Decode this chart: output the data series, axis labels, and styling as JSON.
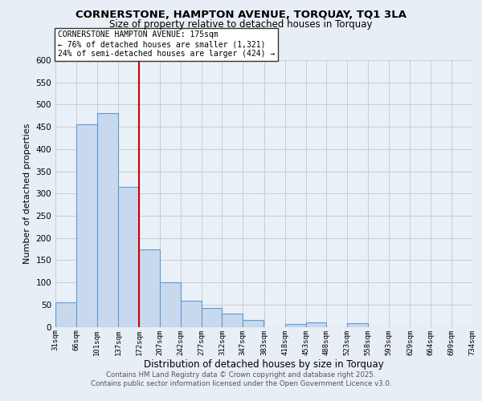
{
  "title": "CORNERSTONE, HAMPTON AVENUE, TORQUAY, TQ1 3LA",
  "subtitle": "Size of property relative to detached houses in Torquay",
  "xlabel": "Distribution of detached houses by size in Torquay",
  "ylabel": "Number of detached properties",
  "bar_left_edges": [
    31,
    66,
    101,
    137,
    172,
    207,
    242,
    277,
    312,
    347,
    383,
    418,
    453,
    488,
    523,
    558,
    593,
    629,
    664,
    699
  ],
  "bar_heights": [
    55,
    455,
    480,
    315,
    175,
    100,
    58,
    42,
    30,
    15,
    0,
    6,
    10,
    0,
    8,
    0,
    0,
    0,
    0,
    0
  ],
  "bin_width": 35,
  "tick_labels": [
    "31sqm",
    "66sqm",
    "101sqm",
    "137sqm",
    "172sqm",
    "207sqm",
    "242sqm",
    "277sqm",
    "312sqm",
    "347sqm",
    "383sqm",
    "418sqm",
    "453sqm",
    "488sqm",
    "523sqm",
    "558sqm",
    "593sqm",
    "629sqm",
    "664sqm",
    "699sqm",
    "734sqm"
  ],
  "bar_color": "#c9d9ed",
  "bar_edge_color": "#5b9bd5",
  "vline_x": 172,
  "vline_color": "#cc0000",
  "annotation_title": "CORNERSTONE HAMPTON AVENUE: 175sqm",
  "annotation_line1": "← 76% of detached houses are smaller (1,321)",
  "annotation_line2": "24% of semi-detached houses are larger (424) →",
  "annotation_box_color": "#ffffff",
  "annotation_box_edge": "#333333",
  "ylim": [
    0,
    600
  ],
  "yticks": [
    0,
    50,
    100,
    150,
    200,
    250,
    300,
    350,
    400,
    450,
    500,
    550,
    600
  ],
  "grid_color": "#cccccc",
  "bg_color": "#e8eef5",
  "plot_bg_color": "#eaf0f8",
  "footer1": "Contains HM Land Registry data © Crown copyright and database right 2025.",
  "footer2": "Contains public sector information licensed under the Open Government Licence v3.0."
}
